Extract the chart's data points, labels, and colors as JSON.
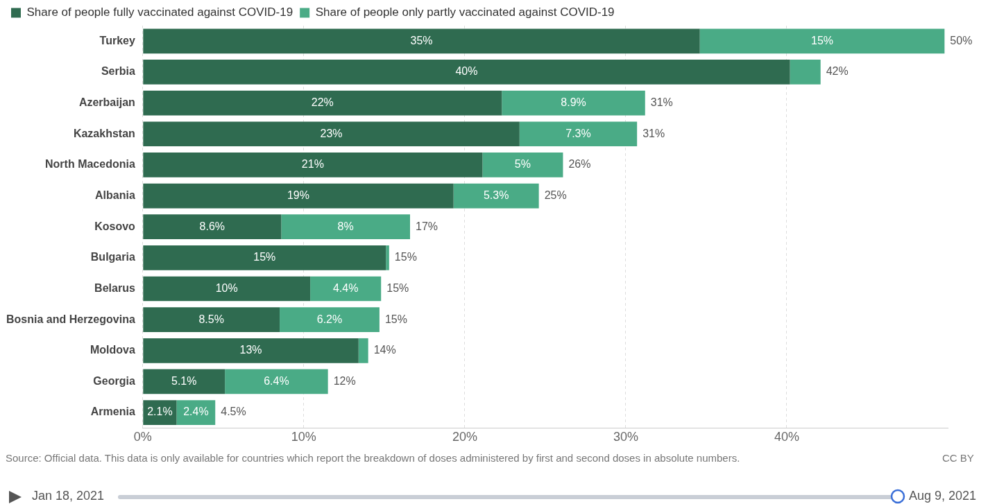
{
  "chart_data": {
    "type": "bar",
    "orientation": "horizontal",
    "stacked": true,
    "categories": [
      "Turkey",
      "Serbia",
      "Azerbaijan",
      "Kazakhstan",
      "North Macedonia",
      "Albania",
      "Kosovo",
      "Bulgaria",
      "Belarus",
      "Bosnia and Herzegovina",
      "Moldova",
      "Georgia",
      "Armenia"
    ],
    "series": [
      {
        "name": "Share of people fully vaccinated against COVID-19",
        "color": "#2f6b50",
        "values": [
          34.6,
          40.2,
          22.3,
          23.4,
          21.1,
          19.3,
          8.6,
          15.1,
          10.4,
          8.5,
          13.4,
          5.1,
          2.1
        ],
        "value_labels": [
          "35%",
          "40%",
          "22%",
          "23%",
          "21%",
          "19%",
          "8.6%",
          "15%",
          "10%",
          "8.5%",
          "13%",
          "5.1%",
          "2.1%"
        ]
      },
      {
        "name": "Share of people only partly vaccinated against COVID-19",
        "color": "#4aab86",
        "values": [
          15.2,
          1.9,
          8.9,
          7.3,
          5.0,
          5.3,
          8.0,
          0.2,
          4.4,
          6.2,
          0.6,
          6.4,
          2.4
        ],
        "value_labels": [
          "15%",
          null,
          "8.9%",
          "7.3%",
          "5%",
          "5.3%",
          "8%",
          null,
          "4.4%",
          "6.2%",
          null,
          "6.4%",
          "2.4%"
        ]
      }
    ],
    "totals": [
      "50%",
      "42%",
      "31%",
      "31%",
      "26%",
      "25%",
      "17%",
      "15%",
      "15%",
      "15%",
      "14%",
      "12%",
      "4.5%"
    ],
    "xlim": [
      0,
      50
    ],
    "xticks": [
      {
        "value": 0,
        "label": "0%"
      },
      {
        "value": 10,
        "label": "10%"
      },
      {
        "value": 20,
        "label": "20%"
      },
      {
        "value": 30,
        "label": "30%"
      },
      {
        "value": 40,
        "label": "40%"
      }
    ],
    "grid": "x",
    "legend": "top left",
    "annotations": [
      "Source: Official data. This data is only available for countries which report the breakdown of doses administered by first and second doses in absolute numbers.",
      "CC BY",
      "Jan 18, 2021",
      "Aug 9, 2021"
    ]
  }
}
